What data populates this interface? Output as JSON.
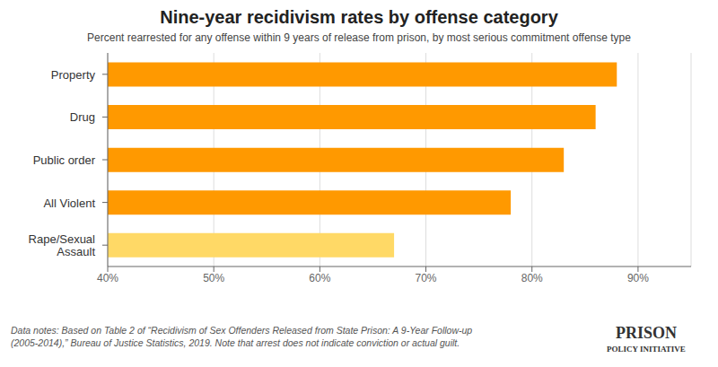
{
  "chart_data": {
    "type": "bar",
    "orientation": "horizontal",
    "title": "Nine-year recidivism rates by offense category",
    "subtitle": "Percent rearrested for any offense within 9 years of release from prison, by most serious commitment offense type",
    "categories": [
      "Property",
      "Drug",
      "Public order",
      "All Violent",
      "Rape/Sexual\nAssault"
    ],
    "values": [
      88,
      86,
      83,
      78,
      67
    ],
    "colors": [
      "#FF9900",
      "#FF9900",
      "#FF9900",
      "#FF9900",
      "#FFD966"
    ],
    "xlim": [
      40,
      95
    ],
    "xticks": [
      {
        "value": 40,
        "label": "40%"
      },
      {
        "value": 50,
        "label": "50%"
      },
      {
        "value": 60,
        "label": "60%"
      },
      {
        "value": 70,
        "label": "70%"
      },
      {
        "value": 80,
        "label": "80%"
      },
      {
        "value": 90,
        "label": "90%"
      }
    ],
    "grid": true,
    "annotations": [
      "Data notes: Based on Table 2 of “Recidivism of Sex Offenders Released from State Prison: A 9-Year Follow-up\n(2005-2014),” Bureau of Justice Statistics, 2019. Note that arrest does not indicate conviction or actual guilt.",
      "PRISON",
      "POLICY INITIATIVE"
    ]
  }
}
